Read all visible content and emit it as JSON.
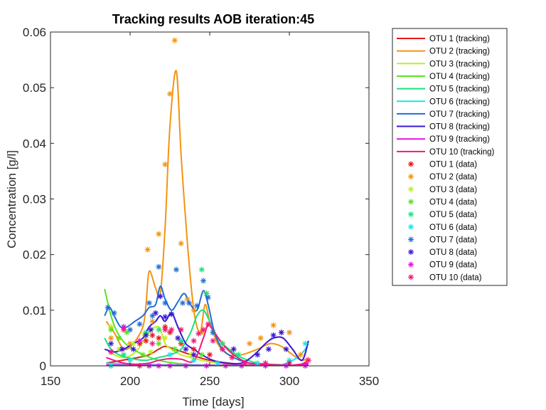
{
  "chart_data": {
    "type": "line",
    "title": "Tracking results AOB iteration:45",
    "xlabel": "Time [days]",
    "ylabel": "Concentration [g/l]",
    "xlim": [
      150,
      350
    ],
    "ylim": [
      0,
      0.06
    ],
    "xticks": [
      "150",
      "200",
      "250",
      "300",
      "350"
    ],
    "yticks": [
      "0",
      "0.01",
      "0.02",
      "0.03",
      "0.04",
      "0.05",
      "0.06"
    ],
    "grid": false,
    "legend_position": "outside-right",
    "series": [
      {
        "name": "OTU 1 (tracking)",
        "color": "#e6191a",
        "x": [
          185,
          195,
          205,
          212,
          218,
          222,
          228,
          240,
          250,
          262,
          275,
          300,
          312
        ],
        "y": [
          0.0005,
          0.001,
          0.0015,
          0.002,
          0.003,
          0.0035,
          0.003,
          0.0018,
          0.001,
          0.0005,
          0.0002,
          0.0001,
          0.0005
        ]
      },
      {
        "name": "OTU 2 (tracking)",
        "color": "#f5930f",
        "x": [
          185,
          190,
          196,
          202,
          208,
          210,
          212,
          216,
          219,
          222,
          225,
          229,
          232,
          236,
          240,
          244,
          247,
          250,
          255,
          262,
          270,
          280,
          288,
          295,
          302,
          308,
          312
        ],
        "y": [
          0.008,
          0.006,
          0.003,
          0.004,
          0.007,
          0.011,
          0.017,
          0.014,
          0.013,
          0.025,
          0.043,
          0.053,
          0.038,
          0.022,
          0.01,
          0.006,
          0.011,
          0.008,
          0.004,
          0.002,
          0.002,
          0.003,
          0.004,
          0.0035,
          0.002,
          0.001,
          0.0015
        ]
      },
      {
        "name": "OTU 3 (tracking)",
        "color": "#bcf01e",
        "x": [
          185,
          190,
          195,
          200,
          205,
          212,
          218,
          222,
          226,
          232,
          238,
          245,
          255,
          270,
          290,
          312
        ],
        "y": [
          0.003,
          0.002,
          0.0015,
          0.0018,
          0.003,
          0.006,
          0.007,
          0.004,
          0.003,
          0.002,
          0.0015,
          0.001,
          0.0005,
          0.0002,
          0.0001,
          0.0001
        ]
      },
      {
        "name": "OTU 4 (tracking)",
        "color": "#57e321",
        "x": [
          184,
          188,
          192,
          197,
          203,
          210,
          218,
          228,
          240,
          255,
          275,
          300,
          312
        ],
        "y": [
          0.0138,
          0.009,
          0.006,
          0.004,
          0.0028,
          0.0018,
          0.001,
          0.0005,
          0.0002,
          0.0001,
          0.0001,
          0.0001,
          0.0001
        ]
      },
      {
        "name": "OTU 5 (tracking)",
        "color": "#1be17d",
        "x": [
          184,
          188,
          193,
          198,
          203,
          210,
          218,
          225,
          232,
          238,
          242,
          246,
          250,
          255,
          262,
          270,
          280,
          295,
          312
        ],
        "y": [
          0.005,
          0.003,
          0.002,
          0.0015,
          0.0012,
          0.001,
          0.0015,
          0.002,
          0.003,
          0.006,
          0.009,
          0.01,
          0.008,
          0.005,
          0.003,
          0.0015,
          0.0005,
          0.0002,
          0.0001
        ]
      },
      {
        "name": "OTU 6 (tracking)",
        "color": "#1de2e6",
        "x": [
          185,
          200,
          220,
          240,
          260,
          280,
          295,
          305,
          310,
          312
        ],
        "y": [
          0.0005,
          0.0003,
          0.0002,
          0.0002,
          0.0001,
          0.0001,
          0.0002,
          0.0015,
          0.003,
          0.004
        ]
      },
      {
        "name": "OTU 7 (tracking)",
        "color": "#1f6ed6",
        "x": [
          184,
          187,
          190,
          194,
          198,
          203,
          208,
          212,
          216,
          219,
          222,
          226,
          230,
          234,
          238,
          242,
          246,
          249,
          253,
          258,
          265,
          275,
          290,
          312
        ],
        "y": [
          0.009,
          0.0105,
          0.009,
          0.007,
          0.007,
          0.008,
          0.009,
          0.0105,
          0.011,
          0.0143,
          0.012,
          0.01,
          0.0115,
          0.013,
          0.011,
          0.01,
          0.0135,
          0.011,
          0.006,
          0.003,
          0.0015,
          0.0005,
          0.0002,
          0.0001
        ]
      },
      {
        "name": "OTU 8 (tracking)",
        "color": "#3718d6",
        "x": [
          184,
          190,
          196,
          202,
          208,
          212,
          216,
          219,
          222,
          226,
          230,
          235,
          240,
          245,
          252,
          260,
          270,
          278,
          285,
          290,
          296,
          302,
          308,
          312
        ],
        "y": [
          0.003,
          0.0025,
          0.003,
          0.004,
          0.005,
          0.007,
          0.008,
          0.009,
          0.008,
          0.0095,
          0.007,
          0.004,
          0.003,
          0.002,
          0.001,
          0.0005,
          0.0005,
          0.002,
          0.004,
          0.005,
          0.005,
          0.003,
          0.001,
          0.0045
        ]
      },
      {
        "name": "OTU 9 (tracking)",
        "color": "#e410e6",
        "x": [
          185,
          200,
          215,
          230,
          245,
          260,
          280,
          300,
          312
        ],
        "y": [
          0.0002,
          0.0001,
          0.0001,
          0.0001,
          0.0001,
          0.0001,
          0.0001,
          0.0001,
          0.0003
        ]
      },
      {
        "name": "OTU 10 (tracking)",
        "color": "#f0197c",
        "x": [
          185,
          192,
          198,
          205,
          212,
          218,
          225,
          232,
          240,
          246,
          249,
          253,
          258,
          265,
          275,
          290,
          305,
          312
        ],
        "y": [
          0.0015,
          0.0008,
          0.0004,
          0.0003,
          0.0005,
          0.001,
          0.0013,
          0.0012,
          0.0009,
          0.005,
          0.0073,
          0.006,
          0.004,
          0.002,
          0.0005,
          0.0002,
          0.0001,
          0.001
        ]
      }
    ],
    "scatter_series": [
      {
        "name": "OTU 1 (data)",
        "color": "#e6191a",
        "points": [
          [
            206,
            0.004
          ],
          [
            210,
            0.0045
          ],
          [
            214,
            0.0055
          ],
          [
            218,
            0.005
          ],
          [
            222,
            0.007
          ],
          [
            225,
            0.006
          ],
          [
            228,
            0.003
          ],
          [
            232,
            0.004
          ],
          [
            240,
            0.003
          ],
          [
            250,
            0.002
          ]
        ]
      },
      {
        "name": "OTU 2 (data)",
        "color": "#f5930f",
        "points": [
          [
            188,
            0.005
          ],
          [
            200,
            0.004
          ],
          [
            211,
            0.0209
          ],
          [
            214,
            0.008
          ],
          [
            218,
            0.0237
          ],
          [
            222,
            0.0362
          ],
          [
            225,
            0.0489
          ],
          [
            228,
            0.0585
          ],
          [
            232,
            0.022
          ],
          [
            236,
            0.012
          ],
          [
            240,
            0.01
          ],
          [
            245,
            0.006
          ],
          [
            248,
            0.013
          ],
          [
            252,
            0.006
          ],
          [
            258,
            0.004
          ],
          [
            265,
            0.003
          ],
          [
            275,
            0.004
          ],
          [
            282,
            0.005
          ],
          [
            290,
            0.0073
          ],
          [
            295,
            0.006
          ],
          [
            300,
            0.006
          ],
          [
            307,
            0.002
          ]
        ]
      },
      {
        "name": "OTU 3 (data)",
        "color": "#bcf01e",
        "points": [
          [
            188,
            0.007
          ],
          [
            193,
            0.003
          ],
          [
            202,
            0.004
          ],
          [
            209,
            0.0058
          ],
          [
            213,
            0.0025
          ],
          [
            218,
            0.004
          ],
          [
            222,
            0.005
          ],
          [
            228,
            0.003
          ],
          [
            238,
            0.002
          ]
        ]
      },
      {
        "name": "OTU 4 (data)",
        "color": "#57e321",
        "points": [
          [
            188,
            0.0065
          ],
          [
            193,
            0.005
          ],
          [
            198,
            0.006
          ],
          [
            208,
            0.002
          ],
          [
            218,
            0.004
          ],
          [
            228,
            0.003
          ],
          [
            245,
            0.002
          ]
        ]
      },
      {
        "name": "OTU 5 (data)",
        "color": "#1be17d",
        "points": [
          [
            188,
            0.0
          ],
          [
            196,
            0.002
          ],
          [
            210,
            0.006
          ],
          [
            218,
            0.0065
          ],
          [
            232,
            0.0045
          ],
          [
            245,
            0.0173
          ],
          [
            248,
            0.013
          ],
          [
            252,
            0.006
          ],
          [
            258,
            0.004
          ],
          [
            268,
            0.002
          ]
        ]
      },
      {
        "name": "OTU 6 (data)",
        "color": "#1de2e6",
        "points": [
          [
            188,
            0.0
          ],
          [
            200,
            0.001
          ],
          [
            212,
            0.0
          ],
          [
            225,
            0.002
          ],
          [
            240,
            0.001
          ],
          [
            255,
            0.0005
          ],
          [
            280,
            0.0005
          ],
          [
            300,
            0.001
          ],
          [
            310,
            0.004
          ]
        ]
      },
      {
        "name": "OTU 7 (data)",
        "color": "#1f6ed6",
        "points": [
          [
            186,
            0.0105
          ],
          [
            190,
            0.0095
          ],
          [
            196,
            0.007
          ],
          [
            200,
            0.0065
          ],
          [
            206,
            0.0075
          ],
          [
            212,
            0.0113
          ],
          [
            214,
            0.009
          ],
          [
            218,
            0.0178
          ],
          [
            222,
            0.0113
          ],
          [
            226,
            0.0093
          ],
          [
            229,
            0.0173
          ],
          [
            233,
            0.0113
          ],
          [
            237,
            0.0113
          ],
          [
            242,
            0.0108
          ],
          [
            246,
            0.0153
          ],
          [
            249,
            0.0123
          ],
          [
            252,
            0.006
          ],
          [
            258,
            0.003
          ]
        ]
      },
      {
        "name": "OTU 8 (data)",
        "color": "#3718d6",
        "points": [
          [
            188,
            0.004
          ],
          [
            195,
            0.003
          ],
          [
            202,
            0.003
          ],
          [
            210,
            0.0055
          ],
          [
            213,
            0.0065
          ],
          [
            216,
            0.0095
          ],
          [
            219,
            0.0125
          ],
          [
            222,
            0.0088
          ],
          [
            226,
            0.0093
          ],
          [
            230,
            0.005
          ],
          [
            235,
            0.003
          ],
          [
            240,
            0.002
          ],
          [
            265,
            0.003
          ],
          [
            280,
            0.002
          ],
          [
            287,
            0.003
          ],
          [
            290,
            0.0055
          ],
          [
            295,
            0.006
          ],
          [
            298,
            0.003
          ]
        ]
      },
      {
        "name": "OTU 9 (data)",
        "color": "#e410e6",
        "points": [
          [
            188,
            0.0025
          ],
          [
            196,
            0.007
          ],
          [
            206,
            0.0045
          ],
          [
            212,
            0.0
          ],
          [
            218,
            0.0
          ],
          [
            225,
            0.0
          ],
          [
            235,
            0.0
          ],
          [
            248,
            0.0
          ],
          [
            260,
            0.0
          ],
          [
            270,
            0.0
          ],
          [
            285,
            0.0
          ],
          [
            298,
            0.0
          ],
          [
            310,
            0.0
          ]
        ]
      },
      {
        "name": "OTU 10 (data)",
        "color": "#f0197c",
        "points": [
          [
            188,
            0.0025
          ],
          [
            196,
            0.0065
          ],
          [
            206,
            0.0
          ],
          [
            214,
            0.004
          ],
          [
            222,
            0.0065
          ],
          [
            226,
            0.0065
          ],
          [
            232,
            0.0065
          ],
          [
            240,
            0.0045
          ],
          [
            243,
            0.0058
          ],
          [
            246,
            0.0065
          ],
          [
            249,
            0.0075
          ],
          [
            252,
            0.0045
          ],
          [
            258,
            0.003
          ],
          [
            264,
            0.0015
          ],
          [
            272,
            0.0005
          ],
          [
            285,
            0.0005
          ],
          [
            300,
            0.0005
          ],
          [
            312,
            0.001
          ]
        ]
      }
    ]
  }
}
